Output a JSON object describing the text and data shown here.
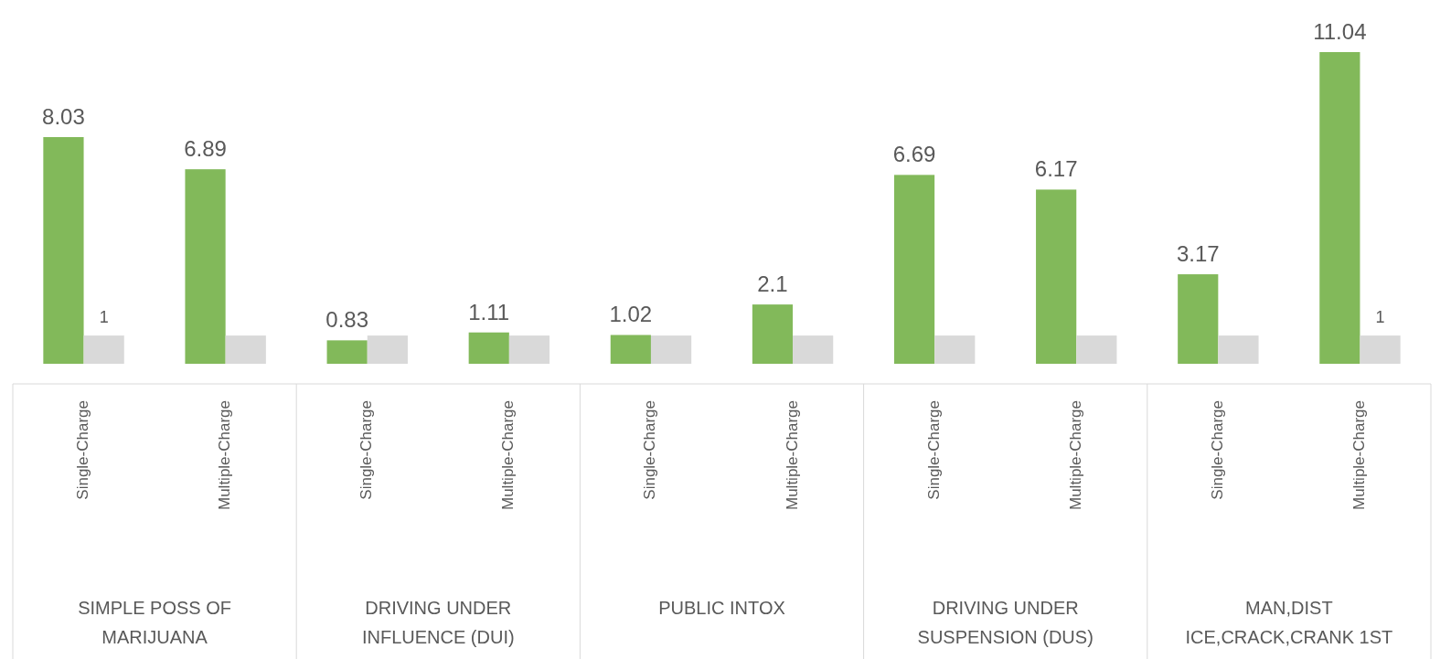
{
  "chart_data": {
    "type": "bar",
    "categories": [
      "Single-Charge",
      "Multiple-Charge",
      "Single-Charge",
      "Multiple-Charge",
      "Single-Charge",
      "Multiple-Charge",
      "Single-Charge",
      "Multiple-Charge",
      "Single-Charge",
      "Multiple-Charge"
    ],
    "series": [
      {
        "color": "#82b95a",
        "values": [
          8.03,
          6.89,
          0.83,
          1.11,
          1.02,
          2.1,
          6.69,
          6.17,
          3.17,
          11.04
        ],
        "value_labels": [
          "8.03",
          "6.89",
          "0.83",
          "1.11",
          "1.02",
          "2.1",
          "6.69",
          "6.17",
          "3.17",
          "11.04"
        ]
      },
      {
        "color": "#d9d9d9",
        "values": [
          1,
          1,
          1,
          1,
          1,
          1,
          1,
          1,
          1,
          1
        ],
        "value_labels": [
          "1",
          null,
          null,
          null,
          null,
          null,
          null,
          null,
          null,
          "1"
        ]
      }
    ],
    "annotations": [
      "SIMPLE POSS OF MARIJUANA",
      "DRIVING UNDER INFLUENCE (DUI)",
      "PUBLIC INTOX",
      "DRIVING UNDER SUSPENSION (DUS)",
      "MAN,DIST ICE,CRACK,CRANK 1ST"
    ]
  }
}
